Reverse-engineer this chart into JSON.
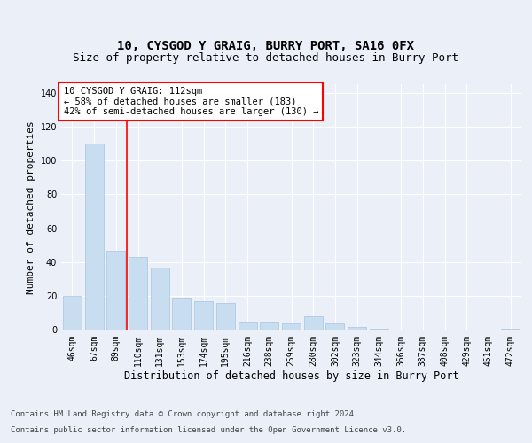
{
  "title": "10, CYSGOD Y GRAIG, BURRY PORT, SA16 0FX",
  "subtitle": "Size of property relative to detached houses in Burry Port",
  "xlabel": "Distribution of detached houses by size in Burry Port",
  "ylabel": "Number of detached properties",
  "categories": [
    "46sqm",
    "67sqm",
    "89sqm",
    "110sqm",
    "131sqm",
    "153sqm",
    "174sqm",
    "195sqm",
    "216sqm",
    "238sqm",
    "259sqm",
    "280sqm",
    "302sqm",
    "323sqm",
    "344sqm",
    "366sqm",
    "387sqm",
    "408sqm",
    "429sqm",
    "451sqm",
    "472sqm"
  ],
  "values": [
    20,
    110,
    47,
    43,
    37,
    19,
    17,
    16,
    5,
    5,
    4,
    8,
    4,
    2,
    1,
    0,
    0,
    0,
    0,
    0,
    1
  ],
  "bar_color": "#c9ddf0",
  "bar_edge_color": "#a8c4e0",
  "vline_color": "red",
  "vline_pos": 2.5,
  "annotation_text": "10 CYSGOD Y GRAIG: 112sqm\n← 58% of detached houses are smaller (183)\n42% of semi-detached houses are larger (130) →",
  "annotation_box_facecolor": "white",
  "annotation_box_edgecolor": "red",
  "ylim": [
    0,
    145
  ],
  "yticks": [
    0,
    20,
    40,
    60,
    80,
    100,
    120,
    140
  ],
  "bg_color": "#eaeff8",
  "plot_bg_color": "#eaeff8",
  "grid_color": "white",
  "footer_line1": "Contains HM Land Registry data © Crown copyright and database right 2024.",
  "footer_line2": "Contains public sector information licensed under the Open Government Licence v3.0.",
  "title_fontsize": 10,
  "subtitle_fontsize": 9,
  "xlabel_fontsize": 8.5,
  "ylabel_fontsize": 8,
  "tick_fontsize": 7,
  "annotation_fontsize": 7.5,
  "footer_fontsize": 6.5
}
